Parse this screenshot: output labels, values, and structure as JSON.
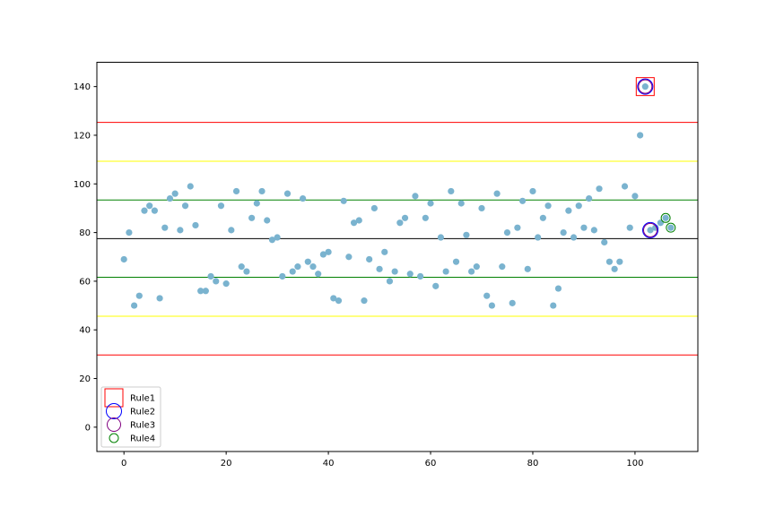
{
  "chart_data": {
    "type": "scatter",
    "title": "",
    "xlabel": "",
    "ylabel": "",
    "xlim": [
      -5.3,
      112.3
    ],
    "ylim": [
      -10,
      150
    ],
    "xticks": [
      0,
      20,
      40,
      60,
      80,
      100
    ],
    "yticks": [
      0,
      20,
      40,
      60,
      80,
      100,
      120,
      140
    ],
    "grid": false,
    "legend_position": "lower-left",
    "colors": {
      "points": "#7ab3cf",
      "center": "#000000",
      "sigma1": "#008000",
      "sigma2": "#ffff00",
      "sigma3": "#ff0000",
      "rule1": "#ff0000",
      "rule2": "#0000ff",
      "rule3": "#800080",
      "rule4": "#008000"
    },
    "control_limits": {
      "center": 77.5,
      "sigma1": [
        61.6,
        93.4
      ],
      "sigma2": [
        45.6,
        109.3
      ],
      "sigma3": [
        29.7,
        125.3
      ]
    },
    "series": [
      {
        "x": [
          0,
          1,
          2,
          3,
          4,
          5,
          6,
          7,
          8,
          9,
          10,
          11,
          12,
          13,
          14,
          15,
          16,
          17,
          18,
          19,
          20,
          21,
          22,
          23,
          24,
          25,
          26,
          27,
          28,
          29,
          30,
          31,
          32,
          33,
          34,
          35,
          36,
          37,
          38,
          39,
          40,
          41,
          42,
          43,
          44,
          45,
          46,
          47,
          48,
          49,
          50,
          51,
          52,
          53,
          54,
          55,
          56,
          57,
          58,
          59,
          60,
          61,
          62,
          63,
          64,
          65,
          66,
          67,
          68,
          69,
          70,
          71,
          72,
          73,
          74,
          75,
          76,
          77,
          78,
          79,
          80,
          81,
          82,
          83,
          84,
          85,
          86,
          87,
          88,
          89,
          90,
          91,
          92,
          93,
          94,
          95,
          96,
          97,
          98,
          99,
          100,
          101,
          102,
          103,
          104,
          105,
          106,
          107
        ],
        "y": [
          69,
          80,
          50,
          54,
          89,
          91,
          89,
          53,
          82,
          94,
          96,
          81,
          91,
          99,
          83,
          56,
          56,
          62,
          60,
          91,
          59,
          81,
          97,
          66,
          64,
          86,
          92,
          97,
          85,
          77,
          78,
          62,
          96,
          64,
          66,
          94,
          68,
          66,
          63,
          71,
          72,
          53,
          52,
          93,
          70,
          84,
          85,
          52,
          69,
          90,
          65,
          72,
          60,
          64,
          84,
          86,
          63,
          95,
          62,
          86,
          92,
          58,
          78,
          64,
          97,
          68,
          92,
          79,
          64,
          66,
          90,
          54,
          50,
          96,
          66,
          80,
          51,
          82,
          93,
          65,
          97,
          78,
          86,
          91,
          50,
          57,
          80,
          89,
          78,
          91,
          82,
          94,
          81,
          98,
          76,
          68,
          65,
          68,
          99,
          82,
          95,
          120,
          140,
          81,
          82,
          84,
          86,
          82
        ]
      }
    ],
    "rule_markers": [
      {
        "rule": "Rule1",
        "marker": "square",
        "x": [
          102
        ],
        "y": [
          140
        ]
      },
      {
        "rule": "Rule2",
        "marker": "circle",
        "x": [
          102,
          103
        ],
        "y": [
          140,
          81
        ]
      },
      {
        "rule": "Rule3",
        "marker": "circle",
        "x": [
          102,
          103
        ],
        "y": [
          140,
          81
        ]
      },
      {
        "rule": "Rule4",
        "marker": "circle",
        "x": [
          106,
          107
        ],
        "y": [
          86,
          82
        ]
      }
    ],
    "legend": [
      "Rule1",
      "Rule2",
      "Rule3",
      "Rule4"
    ]
  }
}
